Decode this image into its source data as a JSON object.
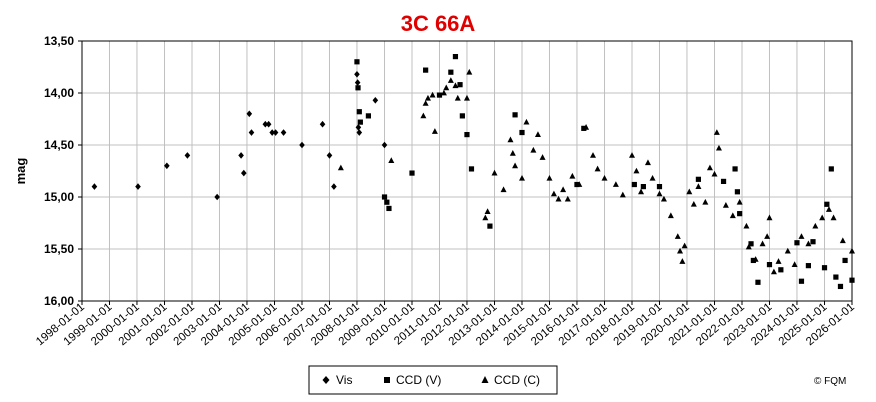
{
  "chart_data": {
    "type": "scatter",
    "title": "3C 66A",
    "xlabel": "",
    "ylabel": "mag",
    "y_inverted": true,
    "ylim": [
      13.5,
      16.0
    ],
    "yticks": [
      "13,50",
      "14,00",
      "14,50",
      "15,00",
      "15,50",
      "16,00"
    ],
    "xlim": [
      "1998-01-01",
      "2026-01-01"
    ],
    "xticks": [
      "1998-01-01",
      "1999-01-01",
      "2000-01-01",
      "2001-01-01",
      "2002-01-01",
      "2003-01-01",
      "2004-01-01",
      "2005-01-01",
      "2006-01-01",
      "2007-01-01",
      "2008-01-01",
      "2009-01-01",
      "2010-01-01",
      "2011-01-01",
      "2012-01-01",
      "2013-01-01",
      "2014-01-01",
      "2015-01-01",
      "2016-01-01",
      "2017-01-01",
      "2018-01-01",
      "2019-01-01",
      "2020-01-01",
      "2021-01-01",
      "2022-01-01",
      "2023-01-01",
      "2024-01-01",
      "2025-01-01",
      "2026-01-01"
    ],
    "grid": true,
    "legend_position": "bottom-center",
    "series": [
      {
        "name": "Vis",
        "marker": "diamond",
        "color": "#000000",
        "points": [
          [
            "1998-06-15",
            14.9
          ],
          [
            "2000-01-15",
            14.9
          ],
          [
            "2001-02-01",
            14.7
          ],
          [
            "2001-11-01",
            14.6
          ],
          [
            "2002-12-01",
            15.0
          ],
          [
            "2003-10-15",
            14.6
          ],
          [
            "2003-11-20",
            14.77
          ],
          [
            "2004-02-01",
            14.2
          ],
          [
            "2004-03-01",
            14.38
          ],
          [
            "2004-09-01",
            14.3
          ],
          [
            "2004-10-15",
            14.3
          ],
          [
            "2004-12-01",
            14.38
          ],
          [
            "2005-01-15",
            14.38
          ],
          [
            "2005-05-01",
            14.38
          ],
          [
            "2006-01-01",
            14.5
          ],
          [
            "2006-10-01",
            14.3
          ],
          [
            "2007-01-01",
            14.6
          ],
          [
            "2007-03-01",
            14.9
          ],
          [
            "2008-01-01",
            13.82
          ],
          [
            "2008-01-10",
            13.9
          ],
          [
            "2008-01-20",
            14.33
          ],
          [
            "2008-02-01",
            14.38
          ],
          [
            "2008-09-01",
            14.07
          ],
          [
            "2009-01-01",
            14.5
          ]
        ]
      },
      {
        "name": "CCD (V)",
        "marker": "square",
        "color": "#000000",
        "points": [
          [
            "2008-01-01",
            13.7
          ],
          [
            "2008-01-15",
            13.95
          ],
          [
            "2008-02-01",
            14.18
          ],
          [
            "2008-02-15",
            14.28
          ],
          [
            "2008-06-01",
            14.22
          ],
          [
            "2009-01-01",
            15.0
          ],
          [
            "2009-02-01",
            15.05
          ],
          [
            "2009-03-01",
            15.11
          ],
          [
            "2010-01-01",
            14.77
          ],
          [
            "2010-07-01",
            13.78
          ],
          [
            "2011-01-01",
            14.02
          ],
          [
            "2011-06-01",
            13.8
          ],
          [
            "2011-08-01",
            13.65
          ],
          [
            "2011-10-01",
            13.92
          ],
          [
            "2011-11-01",
            14.22
          ],
          [
            "2012-01-01",
            14.4
          ],
          [
            "2012-03-01",
            14.73
          ],
          [
            "2012-11-01",
            15.28
          ],
          [
            "2013-10-01",
            14.21
          ],
          [
            "2014-01-01",
            14.38
          ],
          [
            "2016-04-01",
            14.34
          ],
          [
            "2016-01-01",
            14.88
          ],
          [
            "2018-02-01",
            14.88
          ],
          [
            "2018-06-01",
            14.9
          ],
          [
            "2019-01-01",
            14.9
          ],
          [
            "2020-06-01",
            14.83
          ],
          [
            "2021-05-01",
            14.85
          ],
          [
            "2021-10-01",
            14.73
          ],
          [
            "2021-11-01",
            14.95
          ],
          [
            "2021-12-01",
            15.16
          ],
          [
            "2022-05-01",
            15.45
          ],
          [
            "2022-06-01",
            15.61
          ],
          [
            "2022-08-01",
            15.82
          ],
          [
            "2023-01-01",
            15.65
          ],
          [
            "2023-06-01",
            15.7
          ],
          [
            "2024-01-01",
            15.44
          ],
          [
            "2024-03-01",
            15.81
          ],
          [
            "2024-06-01",
            15.66
          ],
          [
            "2024-08-01",
            15.43
          ],
          [
            "2025-01-01",
            15.68
          ],
          [
            "2025-02-01",
            15.07
          ],
          [
            "2025-04-01",
            14.73
          ],
          [
            "2025-06-01",
            15.77
          ],
          [
            "2025-08-01",
            15.86
          ],
          [
            "2025-10-01",
            15.61
          ],
          [
            "2026-01-01",
            15.8
          ],
          [
            "2026-03-01",
            15.14
          ]
        ]
      },
      {
        "name": "CCD (C)",
        "marker": "triangle",
        "color": "#000000",
        "points": [
          [
            "2007-06-01",
            14.72
          ],
          [
            "2009-04-01",
            14.65
          ],
          [
            "2010-06-01",
            14.22
          ],
          [
            "2010-07-01",
            14.1
          ],
          [
            "2010-08-01",
            14.05
          ],
          [
            "2010-10-01",
            14.02
          ],
          [
            "2010-11-01",
            14.37
          ],
          [
            "2011-03-01",
            14.0
          ],
          [
            "2011-04-01",
            13.95
          ],
          [
            "2011-06-01",
            13.88
          ],
          [
            "2011-08-01",
            13.93
          ],
          [
            "2011-09-01",
            14.05
          ],
          [
            "2012-01-01",
            14.05
          ],
          [
            "2012-02-01",
            13.8
          ],
          [
            "2012-09-01",
            15.2
          ],
          [
            "2012-10-01",
            15.14
          ],
          [
            "2013-01-01",
            14.77
          ],
          [
            "2013-05-01",
            14.93
          ],
          [
            "2013-08-01",
            14.45
          ],
          [
            "2013-09-01",
            14.58
          ],
          [
            "2013-10-01",
            14.7
          ],
          [
            "2014-01-01",
            14.82
          ],
          [
            "2014-03-01",
            14.28
          ],
          [
            "2014-06-01",
            14.55
          ],
          [
            "2014-08-01",
            14.4
          ],
          [
            "2014-10-01",
            14.62
          ],
          [
            "2015-01-01",
            14.82
          ],
          [
            "2015-03-01",
            14.97
          ],
          [
            "2015-05-01",
            15.02
          ],
          [
            "2015-07-01",
            14.93
          ],
          [
            "2015-09-01",
            15.02
          ],
          [
            "2015-11-01",
            14.8
          ],
          [
            "2016-02-01",
            14.88
          ],
          [
            "2016-05-01",
            14.33
          ],
          [
            "2016-08-01",
            14.6
          ],
          [
            "2016-10-01",
            14.73
          ],
          [
            "2017-01-01",
            14.82
          ],
          [
            "2017-06-01",
            14.88
          ],
          [
            "2017-09-01",
            14.98
          ],
          [
            "2018-01-01",
            14.6
          ],
          [
            "2018-03-01",
            14.75
          ],
          [
            "2018-05-01",
            14.95
          ],
          [
            "2018-08-01",
            14.67
          ],
          [
            "2018-10-01",
            14.82
          ],
          [
            "2019-01-01",
            14.97
          ],
          [
            "2019-03-01",
            15.02
          ],
          [
            "2019-06-01",
            15.18
          ],
          [
            "2019-09-01",
            15.38
          ],
          [
            "2019-10-01",
            15.52
          ],
          [
            "2019-11-01",
            15.62
          ],
          [
            "2019-12-01",
            15.47
          ],
          [
            "2020-02-01",
            14.95
          ],
          [
            "2020-04-01",
            15.07
          ],
          [
            "2020-06-01",
            14.9
          ],
          [
            "2020-09-01",
            15.05
          ],
          [
            "2020-11-01",
            14.72
          ],
          [
            "2021-01-01",
            14.78
          ],
          [
            "2021-02-01",
            14.38
          ],
          [
            "2021-03-01",
            14.53
          ],
          [
            "2021-06-01",
            15.08
          ],
          [
            "2021-09-01",
            15.18
          ],
          [
            "2021-12-01",
            15.05
          ],
          [
            "2022-03-01",
            15.28
          ],
          [
            "2022-04-01",
            15.48
          ],
          [
            "2022-07-01",
            15.6
          ],
          [
            "2022-10-01",
            15.45
          ],
          [
            "2022-12-01",
            15.38
          ],
          [
            "2023-01-01",
            15.2
          ],
          [
            "2023-03-01",
            15.72
          ],
          [
            "2023-05-01",
            15.62
          ],
          [
            "2023-09-01",
            15.52
          ],
          [
            "2023-12-01",
            15.65
          ],
          [
            "2024-03-01",
            15.38
          ],
          [
            "2024-06-01",
            15.45
          ],
          [
            "2024-09-01",
            15.28
          ],
          [
            "2024-12-01",
            15.2
          ],
          [
            "2025-03-01",
            15.12
          ],
          [
            "2025-05-01",
            15.2
          ],
          [
            "2025-09-01",
            15.42
          ],
          [
            "2026-01-01",
            15.52
          ],
          [
            "2026-02-01",
            15.3
          ]
        ]
      }
    ]
  },
  "legend": {
    "vis_label": "Vis",
    "ccdv_label": "CCD (V)",
    "ccdc_label": "CCD (C)"
  },
  "copyright": "© FQM"
}
